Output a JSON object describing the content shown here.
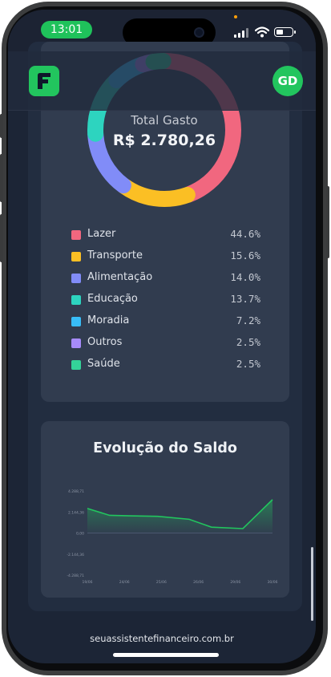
{
  "status_bar": {
    "time": "13:01"
  },
  "header": {
    "avatar_initials": "GD",
    "logo_icon": "finance-app-logo"
  },
  "expenses": {
    "total_label": "Total Gasto",
    "total_value": "R$ 2.780,26",
    "categories": [
      {
        "name": "Lazer",
        "percent": "44.6%",
        "value": 44.6,
        "color": "#f1677f"
      },
      {
        "name": "Transporte",
        "percent": "15.6%",
        "value": 15.6,
        "color": "#fbbf24"
      },
      {
        "name": "Alimentação",
        "percent": "14.0%",
        "value": 14.0,
        "color": "#818cf8"
      },
      {
        "name": "Educação",
        "percent": "13.7%",
        "value": 13.7,
        "color": "#2dd4bf"
      },
      {
        "name": "Moradia",
        "percent": "7.2%",
        "value": 7.2,
        "color": "#38bdf8"
      },
      {
        "name": "Outros",
        "percent": "2.5%",
        "value": 2.5,
        "color": "#a78bfa"
      },
      {
        "name": "Saúde",
        "percent": "2.5%",
        "value": 2.5,
        "color": "#34d399"
      }
    ]
  },
  "balance": {
    "title": "Evolução do Saldo"
  },
  "chart_data": {
    "type": "area",
    "title": "Evolução do Saldo",
    "y_ticks": [
      "4.288,71",
      "2.144,36",
      "0,00",
      "-2.144,36",
      "-4.288,71"
    ],
    "x_ticks": [
      "19/06",
      "24/06",
      "25/06",
      "26/06",
      "29/06",
      "30/06"
    ],
    "ylim": [
      -4288.71,
      4288.71
    ],
    "series": [
      {
        "points": [
          [
            0,
            2500
          ],
          [
            0.12,
            1800
          ],
          [
            0.23,
            1750
          ],
          [
            0.38,
            1700
          ],
          [
            0.55,
            1400
          ],
          [
            0.67,
            600
          ],
          [
            0.84,
            450
          ],
          [
            1,
            3400
          ]
        ]
      }
    ],
    "line_color": "#22c55e"
  },
  "footer": {
    "url": "seuassistentefinanceiro.com.br"
  }
}
